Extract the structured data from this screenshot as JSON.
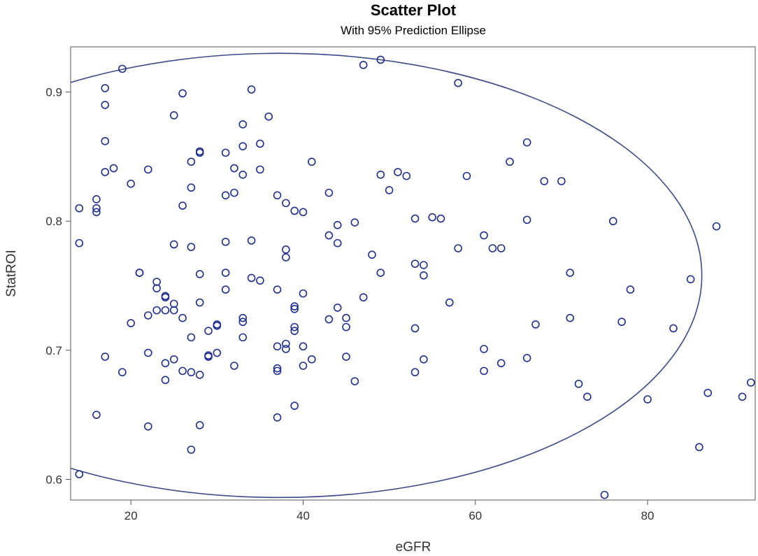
{
  "chart_data": {
    "type": "scatter",
    "title": "Scatter Plot",
    "subtitle": "With 95% Prediction Ellipse",
    "xlabel": "eGFR",
    "ylabel": "StatROI",
    "xlim": [
      13,
      92.5
    ],
    "ylim": [
      0.584,
      0.935
    ],
    "xticks": [
      20,
      40,
      60,
      80
    ],
    "yticks": [
      0.6,
      0.7,
      0.8,
      0.9
    ],
    "grid": false,
    "colors": {
      "marker": "#1f2f8f",
      "ellipse": "#3b4a8a",
      "frame": "#555555"
    },
    "ellipse": {
      "cx": 37.3,
      "cy": 0.758,
      "rx": 49.0,
      "ry": 0.172
    },
    "points": [
      [
        14,
        0.604
      ],
      [
        14,
        0.783
      ],
      [
        14,
        0.81
      ],
      [
        16,
        0.65
      ],
      [
        16,
        0.807
      ],
      [
        16,
        0.81
      ],
      [
        16,
        0.817
      ],
      [
        17,
        0.695
      ],
      [
        17,
        0.838
      ],
      [
        17,
        0.862
      ],
      [
        17,
        0.89
      ],
      [
        17,
        0.903
      ],
      [
        18,
        0.841
      ],
      [
        19,
        0.683
      ],
      [
        19,
        0.918
      ],
      [
        20,
        0.721
      ],
      [
        20,
        0.829
      ],
      [
        21,
        0.76
      ],
      [
        21,
        0.76
      ],
      [
        22,
        0.641
      ],
      [
        22,
        0.698
      ],
      [
        22,
        0.727
      ],
      [
        22,
        0.84
      ],
      [
        23,
        0.731
      ],
      [
        23,
        0.748
      ],
      [
        23,
        0.753
      ],
      [
        24,
        0.677
      ],
      [
        24,
        0.69
      ],
      [
        24,
        0.731
      ],
      [
        24,
        0.741
      ],
      [
        24,
        0.742
      ],
      [
        25,
        0.693
      ],
      [
        25,
        0.731
      ],
      [
        25,
        0.736
      ],
      [
        25,
        0.782
      ],
      [
        25,
        0.882
      ],
      [
        26,
        0.684
      ],
      [
        26,
        0.725
      ],
      [
        26,
        0.812
      ],
      [
        26,
        0.899
      ],
      [
        27,
        0.623
      ],
      [
        27,
        0.683
      ],
      [
        27,
        0.71
      ],
      [
        27,
        0.78
      ],
      [
        27,
        0.826
      ],
      [
        27,
        0.846
      ],
      [
        28,
        0.642
      ],
      [
        28,
        0.681
      ],
      [
        28,
        0.737
      ],
      [
        28,
        0.759
      ],
      [
        28,
        0.853
      ],
      [
        28,
        0.854
      ],
      [
        29,
        0.695
      ],
      [
        29,
        0.696
      ],
      [
        29,
        0.715
      ],
      [
        30,
        0.698
      ],
      [
        30,
        0.719
      ],
      [
        30,
        0.72
      ],
      [
        31,
        0.747
      ],
      [
        31,
        0.76
      ],
      [
        31,
        0.784
      ],
      [
        31,
        0.82
      ],
      [
        31,
        0.853
      ],
      [
        32,
        0.688
      ],
      [
        32,
        0.822
      ],
      [
        32,
        0.841
      ],
      [
        33,
        0.71
      ],
      [
        33,
        0.722
      ],
      [
        33,
        0.725
      ],
      [
        33,
        0.836
      ],
      [
        33,
        0.858
      ],
      [
        33,
        0.875
      ],
      [
        34,
        0.756
      ],
      [
        34,
        0.785
      ],
      [
        34,
        0.902
      ],
      [
        35,
        0.754
      ],
      [
        35,
        0.84
      ],
      [
        35,
        0.86
      ],
      [
        36,
        0.881
      ],
      [
        37,
        0.648
      ],
      [
        37,
        0.684
      ],
      [
        37,
        0.686
      ],
      [
        37,
        0.703
      ],
      [
        37,
        0.747
      ],
      [
        37,
        0.82
      ],
      [
        38,
        0.701
      ],
      [
        38,
        0.705
      ],
      [
        38,
        0.772
      ],
      [
        38,
        0.778
      ],
      [
        38,
        0.814
      ],
      [
        39,
        0.657
      ],
      [
        39,
        0.715
      ],
      [
        39,
        0.718
      ],
      [
        39,
        0.732
      ],
      [
        39,
        0.734
      ],
      [
        39,
        0.808
      ],
      [
        40,
        0.688
      ],
      [
        40,
        0.703
      ],
      [
        40,
        0.744
      ],
      [
        40,
        0.807
      ],
      [
        41,
        0.693
      ],
      [
        41,
        0.846
      ],
      [
        43,
        0.724
      ],
      [
        43,
        0.789
      ],
      [
        43,
        0.822
      ],
      [
        44,
        0.733
      ],
      [
        44,
        0.783
      ],
      [
        44,
        0.797
      ],
      [
        45,
        0.695
      ],
      [
        45,
        0.718
      ],
      [
        45,
        0.725
      ],
      [
        46,
        0.676
      ],
      [
        46,
        0.799
      ],
      [
        47,
        0.741
      ],
      [
        47,
        0.921
      ],
      [
        48,
        0.774
      ],
      [
        49,
        0.76
      ],
      [
        49,
        0.836
      ],
      [
        49,
        0.925
      ],
      [
        50,
        0.824
      ],
      [
        51,
        0.838
      ],
      [
        52,
        0.835
      ],
      [
        53,
        0.683
      ],
      [
        53,
        0.717
      ],
      [
        53,
        0.767
      ],
      [
        53,
        0.802
      ],
      [
        54,
        0.693
      ],
      [
        54,
        0.758
      ],
      [
        54,
        0.766
      ],
      [
        55,
        0.803
      ],
      [
        56,
        0.802
      ],
      [
        57,
        0.737
      ],
      [
        58,
        0.779
      ],
      [
        58,
        0.907
      ],
      [
        59,
        0.835
      ],
      [
        61,
        0.684
      ],
      [
        61,
        0.701
      ],
      [
        61,
        0.789
      ],
      [
        62,
        0.779
      ],
      [
        63,
        0.69
      ],
      [
        63,
        0.779
      ],
      [
        64,
        0.846
      ],
      [
        66,
        0.694
      ],
      [
        66,
        0.801
      ],
      [
        66,
        0.861
      ],
      [
        67,
        0.72
      ],
      [
        68,
        0.831
      ],
      [
        70,
        0.831
      ],
      [
        71,
        0.725
      ],
      [
        71,
        0.76
      ],
      [
        72,
        0.674
      ],
      [
        73,
        0.664
      ],
      [
        75,
        0.588
      ],
      [
        76,
        0.8
      ],
      [
        77,
        0.722
      ],
      [
        78,
        0.747
      ],
      [
        80,
        0.662
      ],
      [
        83,
        0.717
      ],
      [
        85,
        0.755
      ],
      [
        86,
        0.625
      ],
      [
        87,
        0.667
      ],
      [
        88,
        0.796
      ],
      [
        91,
        0.664
      ],
      [
        92,
        0.675
      ]
    ]
  }
}
